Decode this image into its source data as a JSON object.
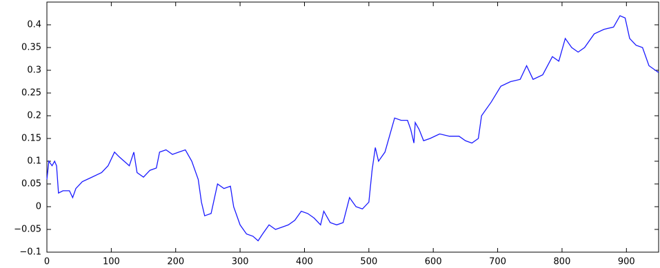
{
  "chart_data": {
    "type": "line",
    "color": "#1a1aff",
    "x": [
      0,
      3,
      8,
      12,
      15,
      18,
      25,
      35,
      40,
      45,
      55,
      70,
      85,
      95,
      105,
      112,
      120,
      128,
      135,
      140,
      150,
      160,
      170,
      175,
      185,
      195,
      205,
      215,
      225,
      235,
      240,
      245,
      255,
      265,
      275,
      285,
      290,
      300,
      310,
      320,
      328,
      335,
      345,
      355,
      365,
      375,
      385,
      395,
      405,
      415,
      425,
      430,
      440,
      450,
      460,
      470,
      480,
      490,
      500,
      505,
      510,
      515,
      525,
      535,
      540,
      550,
      560,
      565,
      570,
      572,
      578,
      585,
      595,
      610,
      625,
      640,
      650,
      660,
      670,
      675,
      690,
      705,
      720,
      735,
      745,
      755,
      770,
      785,
      795,
      805,
      815,
      825,
      835,
      850,
      865,
      880,
      890,
      898,
      905,
      915,
      925,
      935,
      945,
      950
    ],
    "values": [
      0.06,
      0.1,
      0.09,
      0.1,
      0.09,
      0.03,
      0.035,
      0.035,
      0.02,
      0.04,
      0.055,
      0.065,
      0.075,
      0.09,
      0.12,
      0.11,
      0.1,
      0.09,
      0.12,
      0.075,
      0.065,
      0.08,
      0.085,
      0.12,
      0.125,
      0.115,
      0.12,
      0.125,
      0.1,
      0.06,
      0.01,
      -0.02,
      -0.015,
      0.05,
      0.04,
      0.045,
      0.0,
      -0.04,
      -0.06,
      -0.065,
      -0.075,
      -0.06,
      -0.04,
      -0.05,
      -0.045,
      -0.04,
      -0.03,
      -0.01,
      -0.015,
      -0.025,
      -0.04,
      -0.01,
      -0.035,
      -0.04,
      -0.035,
      0.02,
      0.0,
      -0.005,
      0.01,
      0.08,
      0.13,
      0.1,
      0.12,
      0.17,
      0.195,
      0.19,
      0.19,
      0.17,
      0.14,
      0.185,
      0.17,
      0.145,
      0.15,
      0.16,
      0.155,
      0.155,
      0.145,
      0.14,
      0.15,
      0.2,
      0.23,
      0.265,
      0.275,
      0.28,
      0.31,
      0.28,
      0.29,
      0.33,
      0.32,
      0.37,
      0.35,
      0.34,
      0.35,
      0.38,
      0.39,
      0.395,
      0.42,
      0.415,
      0.37,
      0.355,
      0.35,
      0.31,
      0.3,
      0.295
    ],
    "xlim": [
      0,
      950
    ],
    "ylim": [
      -0.1,
      0.45
    ],
    "xticks": [
      0,
      100,
      200,
      300,
      400,
      500,
      600,
      700,
      800,
      900
    ],
    "yticks": [
      {
        "value": -0.1,
        "label": "−0.1"
      },
      {
        "value": -0.05,
        "label": "−0.05"
      },
      0,
      0.05,
      0.1,
      0.15,
      0.2,
      0.25,
      0.3,
      0.35,
      0.4
    ]
  }
}
